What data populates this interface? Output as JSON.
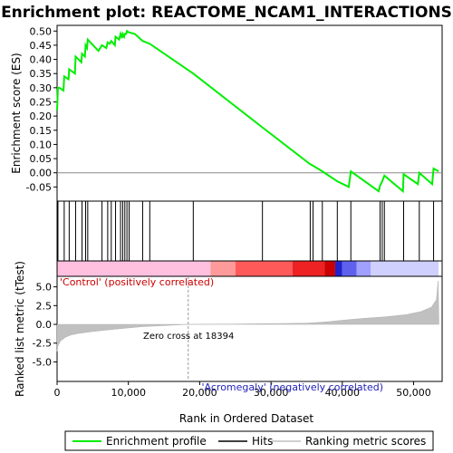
{
  "title": "Enrichment plot: REACTOME_NCAM1_INTERACTIONS",
  "chart_data": [
    {
      "type": "line",
      "panel": "enrichment-profile",
      "ylabel": "Enrichment score (ES)",
      "xlim": [
        0,
        54000
      ],
      "ylim": [
        -0.1,
        0.52
      ],
      "yticks": [
        -0.05,
        0.0,
        0.05,
        0.1,
        0.15,
        0.2,
        0.25,
        0.3,
        0.35,
        0.4,
        0.45,
        0.5
      ],
      "ytick_labels": [
        "-0.05",
        "0.00",
        "0.05",
        "0.10",
        "0.15",
        "0.20",
        "0.25",
        "0.30",
        "0.35",
        "0.40",
        "0.45",
        "0.50"
      ],
      "grid": false,
      "series": [
        {
          "name": "Enrichment profile",
          "color": "#00ee00",
          "x": [
            0,
            120,
            300,
            900,
            1000,
            1600,
            1700,
            2500,
            2600,
            3400,
            3500,
            3900,
            4000,
            4200,
            4300,
            5800,
            6300,
            6900,
            7100,
            7400,
            7600,
            8100,
            8200,
            8700,
            8900,
            9100,
            9200,
            9400,
            9500,
            9700,
            9800,
            10100,
            10900,
            12000,
            13000,
            19100,
            28800,
            35500,
            35900,
            37200,
            39300,
            40900,
            41200,
            45100,
            45300,
            45600,
            45900,
            48500,
            48600,
            50600,
            50800,
            52600,
            52800,
            53500
          ],
          "y": [
            0.22,
            0.3,
            0.3,
            0.29,
            0.34,
            0.33,
            0.365,
            0.35,
            0.41,
            0.39,
            0.42,
            0.41,
            0.45,
            0.44,
            0.47,
            0.43,
            0.45,
            0.44,
            0.46,
            0.455,
            0.465,
            0.45,
            0.48,
            0.47,
            0.49,
            0.475,
            0.49,
            0.48,
            0.49,
            0.49,
            0.5,
            0.495,
            0.49,
            0.465,
            0.455,
            0.35,
            0.16,
            0.03,
            0.025,
            0.005,
            -0.03,
            -0.05,
            0.005,
            -0.065,
            -0.045,
            -0.03,
            -0.01,
            -0.065,
            -0.005,
            -0.04,
            0.0,
            -0.04,
            0.015,
            0.005
          ]
        }
      ]
    },
    {
      "type": "hits",
      "panel": "hits",
      "series_name": "Hits",
      "hit_positions": [
        120,
        1000,
        1700,
        2600,
        3500,
        4000,
        4300,
        6300,
        7100,
        7600,
        8200,
        8900,
        9200,
        9500,
        9800,
        10100,
        12000,
        13000,
        19100,
        28800,
        35500,
        35900,
        37200,
        39300,
        41200,
        45300,
        45600,
        45900,
        48600,
        50800,
        52800
      ]
    },
    {
      "type": "heatmap",
      "panel": "rank-color-bar",
      "colors": [
        "#ffc0e0",
        "#ff9a9a",
        "#ff5a5a",
        "#ee2222",
        "#cc0000",
        "#2222cc",
        "#6060ee",
        "#a0a0ff",
        "#d0d0ff"
      ],
      "stops": [
        0,
        21500,
        25000,
        33000,
        37500,
        39000,
        40000,
        42000,
        44000,
        53500
      ]
    },
    {
      "type": "area",
      "panel": "ranked-metric",
      "series_name": "Ranking metric scores",
      "xlabel": "Rank in Ordered Dataset",
      "ylabel": "Ranked list metric (tTest)",
      "xlim": [
        0,
        54000
      ],
      "ylim": [
        -7.6,
        6.4
      ],
      "yticks": [
        -5.0,
        -2.5,
        0.0,
        2.5,
        5.0
      ],
      "ytick_labels": [
        "-5.0",
        "-2.5",
        "0.0",
        "2.5",
        "5.0"
      ],
      "xticks": [
        0,
        10000,
        20000,
        30000,
        40000,
        50000
      ],
      "xtick_labels": [
        "0",
        "10,000",
        "20,000",
        "30,000",
        "40,000",
        "50,000"
      ],
      "x": [
        0,
        150,
        500,
        1200,
        2000,
        3000,
        5000,
        8000,
        12000,
        18394,
        25000,
        35000,
        38000,
        40000,
        43000,
        46000,
        49000,
        51000,
        52500,
        53200,
        53450,
        53550
      ],
      "y": [
        -3.6,
        -2.8,
        -2.2,
        -1.7,
        -1.4,
        -1.2,
        -0.95,
        -0.65,
        -0.3,
        0.0,
        0.05,
        0.15,
        0.35,
        0.55,
        0.8,
        1.0,
        1.3,
        1.7,
        2.3,
        3.3,
        5.8,
        0.0
      ],
      "fill_color": "#c0c0c0",
      "zero_cross_label": "Zero cross at 18394",
      "zero_cross_rank": 18394,
      "annotations": [
        {
          "text": "'Control' (positively correlated)",
          "color": "#cc0000"
        },
        {
          "text": "'Acromegaly' (negatively correlated)",
          "color": "#2222bb"
        }
      ]
    }
  ],
  "legend": {
    "items": [
      {
        "label": "Enrichment profile",
        "color": "#00ee00",
        "kind": "line"
      },
      {
        "label": "Hits",
        "color": "#000000",
        "kind": "line"
      },
      {
        "label": "Ranking metric scores",
        "color": "#c0c0c0",
        "kind": "line"
      }
    ]
  }
}
